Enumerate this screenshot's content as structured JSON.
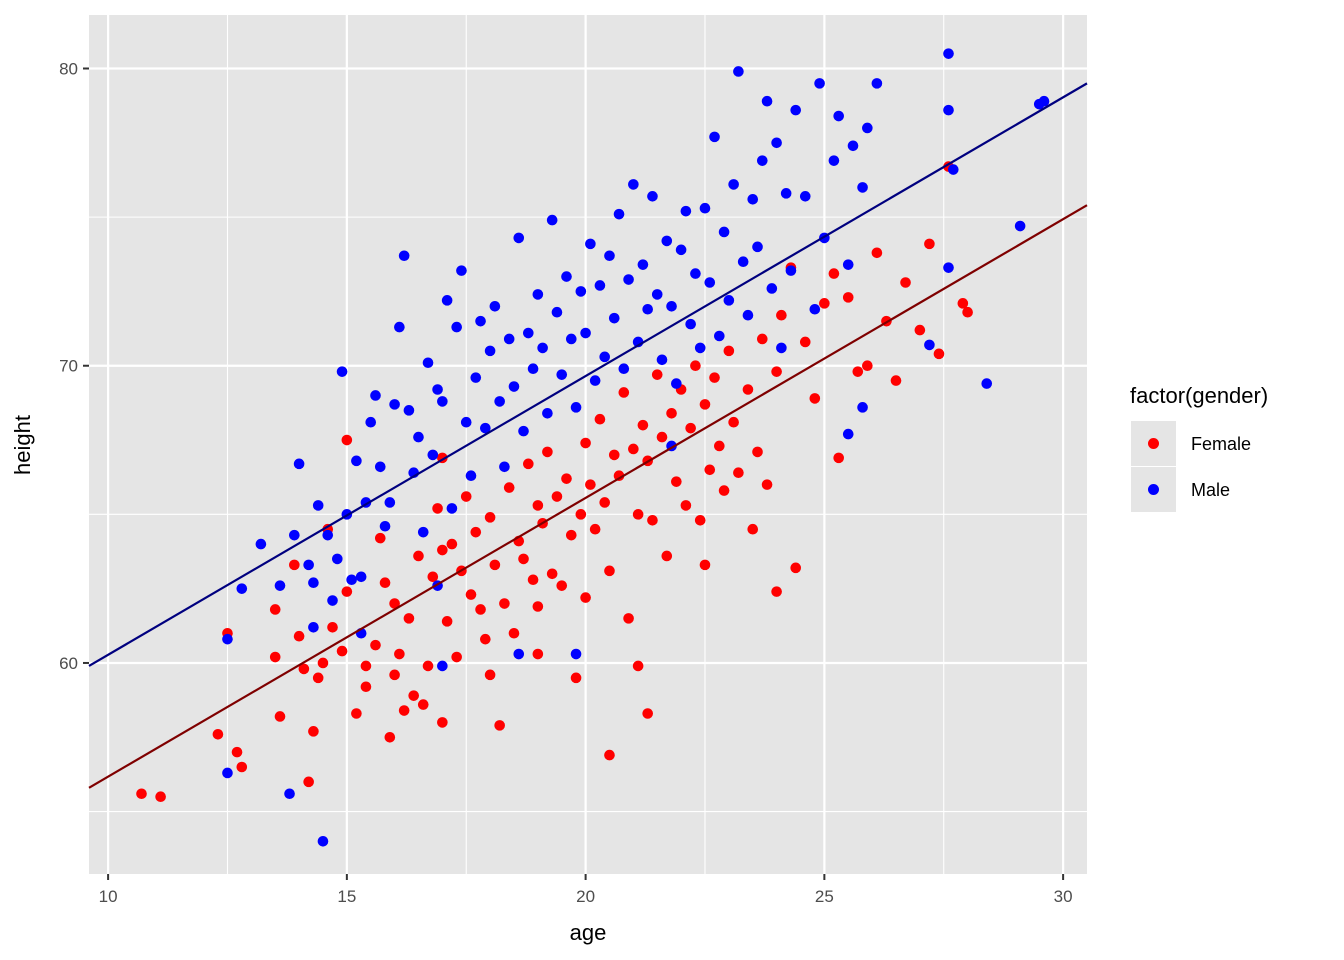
{
  "chart_data": {
    "type": "scatter",
    "xlabel": "age",
    "ylabel": "height",
    "xlim": [
      9.6,
      30.5
    ],
    "ylim": [
      52.9,
      81.8
    ],
    "x_ticks": [
      10,
      15,
      20,
      25,
      30
    ],
    "y_ticks": [
      60,
      70,
      80
    ],
    "x_tick_labels": [
      "10",
      "15",
      "20",
      "25",
      "30"
    ],
    "y_tick_labels": [
      "60",
      "70",
      "80"
    ],
    "grid": true,
    "legend": {
      "title": "factor(gender)",
      "placement": "right",
      "entries": [
        "Female",
        "Male"
      ]
    },
    "colors": {
      "Female": "#ff0000",
      "Male": "#0000ff",
      "Female_fit": "#7f0000",
      "Male_fit": "#00007f",
      "panel": "#e5e5e5",
      "grid": "#ffffff"
    },
    "series": [
      {
        "name": "Female",
        "fit": [
          [
            9.6,
            55.8
          ],
          [
            30.5,
            75.4
          ]
        ],
        "points": [
          [
            10.7,
            55.6
          ],
          [
            11.1,
            55.5
          ],
          [
            12.3,
            57.6
          ],
          [
            12.5,
            61.0
          ],
          [
            12.7,
            57.0
          ],
          [
            12.8,
            56.5
          ],
          [
            13.5,
            61.8
          ],
          [
            13.5,
            60.2
          ],
          [
            13.6,
            58.2
          ],
          [
            13.9,
            63.3
          ],
          [
            14.0,
            60.9
          ],
          [
            14.1,
            59.8
          ],
          [
            14.2,
            56.0
          ],
          [
            14.3,
            57.7
          ],
          [
            14.4,
            59.5
          ],
          [
            14.5,
            60.0
          ],
          [
            14.6,
            64.5
          ],
          [
            14.7,
            61.2
          ],
          [
            14.9,
            60.4
          ],
          [
            15.0,
            62.4
          ],
          [
            15.0,
            67.5
          ],
          [
            15.2,
            58.3
          ],
          [
            15.4,
            59.9
          ],
          [
            15.4,
            59.2
          ],
          [
            15.6,
            60.6
          ],
          [
            15.7,
            64.2
          ],
          [
            15.8,
            62.7
          ],
          [
            15.9,
            57.5
          ],
          [
            16.0,
            59.6
          ],
          [
            16.1,
            60.3
          ],
          [
            16.2,
            58.4
          ],
          [
            16.3,
            61.5
          ],
          [
            16.4,
            58.9
          ],
          [
            16.5,
            63.6
          ],
          [
            16.6,
            58.6
          ],
          [
            16.7,
            59.9
          ],
          [
            16.8,
            62.9
          ],
          [
            16.9,
            65.2
          ],
          [
            17.0,
            58.0
          ],
          [
            17.0,
            66.9
          ],
          [
            17.1,
            61.4
          ],
          [
            17.2,
            64.0
          ],
          [
            17.3,
            60.2
          ],
          [
            17.4,
            63.1
          ],
          [
            17.5,
            65.6
          ],
          [
            17.6,
            62.3
          ],
          [
            17.7,
            64.4
          ],
          [
            17.8,
            61.8
          ],
          [
            17.9,
            60.8
          ],
          [
            18.0,
            59.6
          ],
          [
            18.0,
            64.9
          ],
          [
            18.1,
            63.3
          ],
          [
            18.2,
            57.9
          ],
          [
            18.3,
            62.0
          ],
          [
            18.4,
            65.9
          ],
          [
            18.5,
            61.0
          ],
          [
            18.6,
            64.1
          ],
          [
            18.7,
            63.5
          ],
          [
            18.8,
            66.7
          ],
          [
            18.9,
            62.8
          ],
          [
            19.0,
            65.3
          ],
          [
            19.0,
            61.9
          ],
          [
            19.1,
            64.7
          ],
          [
            19.2,
            67.1
          ],
          [
            19.3,
            63.0
          ],
          [
            19.4,
            65.6
          ],
          [
            19.5,
            62.6
          ],
          [
            19.6,
            66.2
          ],
          [
            19.7,
            64.3
          ],
          [
            19.8,
            59.5
          ],
          [
            19.9,
            65.0
          ],
          [
            20.0,
            67.4
          ],
          [
            20.0,
            62.2
          ],
          [
            20.1,
            66.0
          ],
          [
            20.2,
            64.5
          ],
          [
            20.3,
            68.2
          ],
          [
            20.4,
            65.4
          ],
          [
            20.5,
            63.1
          ],
          [
            20.6,
            67.0
          ],
          [
            20.7,
            66.3
          ],
          [
            20.8,
            69.1
          ],
          [
            20.9,
            61.5
          ],
          [
            21.0,
            67.2
          ],
          [
            21.1,
            65.0
          ],
          [
            21.1,
            59.9
          ],
          [
            21.2,
            68.0
          ],
          [
            21.3,
            66.8
          ],
          [
            21.4,
            64.8
          ],
          [
            21.5,
            69.7
          ],
          [
            21.6,
            67.6
          ],
          [
            21.7,
            63.6
          ],
          [
            21.8,
            68.4
          ],
          [
            21.9,
            66.1
          ],
          [
            22.0,
            69.2
          ],
          [
            22.1,
            65.3
          ],
          [
            22.2,
            67.9
          ],
          [
            22.3,
            70.0
          ],
          [
            22.4,
            64.8
          ],
          [
            22.5,
            68.7
          ],
          [
            22.6,
            66.5
          ],
          [
            22.7,
            69.6
          ],
          [
            22.8,
            67.3
          ],
          [
            22.9,
            65.8
          ],
          [
            23.0,
            70.5
          ],
          [
            23.1,
            68.1
          ],
          [
            23.2,
            66.4
          ],
          [
            23.4,
            69.2
          ],
          [
            23.5,
            64.5
          ],
          [
            23.6,
            67.1
          ],
          [
            23.7,
            70.9
          ],
          [
            23.8,
            66.0
          ],
          [
            24.0,
            62.4
          ],
          [
            24.0,
            69.8
          ],
          [
            24.1,
            71.7
          ],
          [
            24.3,
            73.3
          ],
          [
            24.4,
            63.2
          ],
          [
            24.6,
            70.8
          ],
          [
            24.8,
            68.9
          ],
          [
            25.0,
            72.1
          ],
          [
            25.2,
            73.1
          ],
          [
            25.3,
            66.9
          ],
          [
            25.5,
            72.3
          ],
          [
            25.7,
            69.8
          ],
          [
            25.9,
            70.0
          ],
          [
            26.1,
            73.8
          ],
          [
            26.3,
            71.5
          ],
          [
            26.5,
            69.5
          ],
          [
            26.7,
            72.8
          ],
          [
            27.0,
            71.2
          ],
          [
            27.2,
            74.1
          ],
          [
            27.4,
            70.4
          ],
          [
            27.6,
            76.7
          ],
          [
            27.9,
            72.1
          ],
          [
            28.0,
            71.8
          ],
          [
            21.3,
            58.3
          ],
          [
            20.5,
            56.9
          ],
          [
            19.0,
            60.3
          ],
          [
            17.0,
            63.8
          ],
          [
            16.0,
            62.0
          ],
          [
            22.5,
            63.3
          ]
        ]
      },
      {
        "name": "Male",
        "fit": [
          [
            9.6,
            59.9
          ],
          [
            30.5,
            79.5
          ]
        ],
        "points": [
          [
            12.5,
            56.3
          ],
          [
            12.5,
            60.8
          ],
          [
            12.8,
            62.5
          ],
          [
            13.2,
            64.0
          ],
          [
            13.6,
            62.6
          ],
          [
            13.8,
            55.6
          ],
          [
            13.9,
            64.3
          ],
          [
            14.0,
            66.7
          ],
          [
            14.2,
            63.3
          ],
          [
            14.3,
            62.7
          ],
          [
            14.4,
            65.3
          ],
          [
            14.5,
            54.0
          ],
          [
            14.6,
            64.3
          ],
          [
            14.7,
            62.1
          ],
          [
            14.8,
            63.5
          ],
          [
            14.9,
            69.8
          ],
          [
            15.0,
            65.0
          ],
          [
            15.1,
            62.8
          ],
          [
            15.2,
            66.8
          ],
          [
            15.3,
            61.0
          ],
          [
            15.4,
            65.4
          ],
          [
            15.5,
            68.1
          ],
          [
            15.6,
            69.0
          ],
          [
            15.7,
            66.6
          ],
          [
            15.8,
            64.6
          ],
          [
            15.9,
            65.4
          ],
          [
            16.0,
            68.7
          ],
          [
            16.1,
            71.3
          ],
          [
            16.2,
            73.7
          ],
          [
            16.3,
            68.5
          ],
          [
            16.4,
            66.4
          ],
          [
            16.5,
            67.6
          ],
          [
            16.6,
            64.4
          ],
          [
            16.7,
            70.1
          ],
          [
            16.8,
            67.0
          ],
          [
            16.9,
            69.2
          ],
          [
            17.0,
            59.9
          ],
          [
            17.0,
            68.8
          ],
          [
            17.1,
            72.2
          ],
          [
            17.2,
            65.2
          ],
          [
            17.3,
            71.3
          ],
          [
            17.4,
            73.2
          ],
          [
            17.5,
            68.1
          ],
          [
            17.6,
            66.3
          ],
          [
            17.7,
            69.6
          ],
          [
            17.8,
            71.5
          ],
          [
            17.9,
            67.9
          ],
          [
            18.0,
            70.5
          ],
          [
            18.1,
            72.0
          ],
          [
            18.2,
            68.8
          ],
          [
            18.3,
            66.6
          ],
          [
            18.4,
            70.9
          ],
          [
            18.5,
            69.3
          ],
          [
            18.6,
            74.3
          ],
          [
            18.7,
            67.8
          ],
          [
            18.8,
            71.1
          ],
          [
            18.9,
            69.9
          ],
          [
            19.0,
            72.4
          ],
          [
            19.1,
            70.6
          ],
          [
            19.2,
            68.4
          ],
          [
            19.3,
            74.9
          ],
          [
            19.4,
            71.8
          ],
          [
            19.5,
            69.7
          ],
          [
            19.6,
            73.0
          ],
          [
            19.7,
            70.9
          ],
          [
            19.8,
            68.6
          ],
          [
            19.9,
            72.5
          ],
          [
            20.0,
            71.1
          ],
          [
            20.1,
            74.1
          ],
          [
            20.2,
            69.5
          ],
          [
            20.3,
            72.7
          ],
          [
            20.4,
            70.3
          ],
          [
            20.5,
            73.7
          ],
          [
            20.6,
            71.6
          ],
          [
            20.7,
            75.1
          ],
          [
            20.8,
            69.9
          ],
          [
            20.9,
            72.9
          ],
          [
            21.0,
            76.1
          ],
          [
            21.1,
            70.8
          ],
          [
            21.2,
            73.4
          ],
          [
            21.3,
            71.9
          ],
          [
            21.4,
            75.7
          ],
          [
            21.5,
            72.4
          ],
          [
            21.6,
            70.2
          ],
          [
            21.7,
            74.2
          ],
          [
            21.8,
            72.0
          ],
          [
            21.9,
            69.4
          ],
          [
            22.0,
            73.9
          ],
          [
            22.1,
            75.2
          ],
          [
            22.2,
            71.4
          ],
          [
            22.3,
            73.1
          ],
          [
            22.4,
            70.6
          ],
          [
            22.5,
            75.3
          ],
          [
            22.6,
            72.8
          ],
          [
            22.7,
            77.7
          ],
          [
            22.8,
            71.0
          ],
          [
            22.9,
            74.5
          ],
          [
            23.0,
            72.2
          ],
          [
            23.1,
            76.1
          ],
          [
            23.2,
            79.9
          ],
          [
            23.3,
            73.5
          ],
          [
            23.4,
            71.7
          ],
          [
            23.5,
            75.6
          ],
          [
            23.6,
            74.0
          ],
          [
            23.7,
            76.9
          ],
          [
            23.8,
            78.9
          ],
          [
            23.9,
            72.6
          ],
          [
            24.0,
            77.5
          ],
          [
            24.1,
            70.6
          ],
          [
            24.2,
            75.8
          ],
          [
            24.3,
            73.2
          ],
          [
            24.4,
            78.6
          ],
          [
            24.6,
            75.7
          ],
          [
            24.8,
            71.9
          ],
          [
            24.9,
            79.5
          ],
          [
            25.0,
            74.3
          ],
          [
            25.2,
            76.9
          ],
          [
            25.3,
            78.4
          ],
          [
            25.5,
            73.4
          ],
          [
            25.6,
            77.4
          ],
          [
            25.8,
            76.0
          ],
          [
            25.9,
            78.0
          ],
          [
            26.1,
            79.5
          ],
          [
            25.8,
            68.6
          ],
          [
            25.5,
            67.7
          ],
          [
            27.2,
            70.7
          ],
          [
            27.6,
            73.3
          ],
          [
            27.6,
            80.5
          ],
          [
            27.6,
            78.6
          ],
          [
            27.7,
            76.6
          ],
          [
            28.4,
            69.4
          ],
          [
            29.1,
            74.7
          ],
          [
            29.5,
            78.8
          ],
          [
            29.6,
            78.9
          ],
          [
            18.6,
            60.3
          ],
          [
            19.8,
            60.3
          ],
          [
            15.3,
            62.9
          ],
          [
            16.9,
            62.6
          ],
          [
            14.3,
            61.2
          ],
          [
            21.8,
            67.3
          ]
        ]
      }
    ]
  }
}
